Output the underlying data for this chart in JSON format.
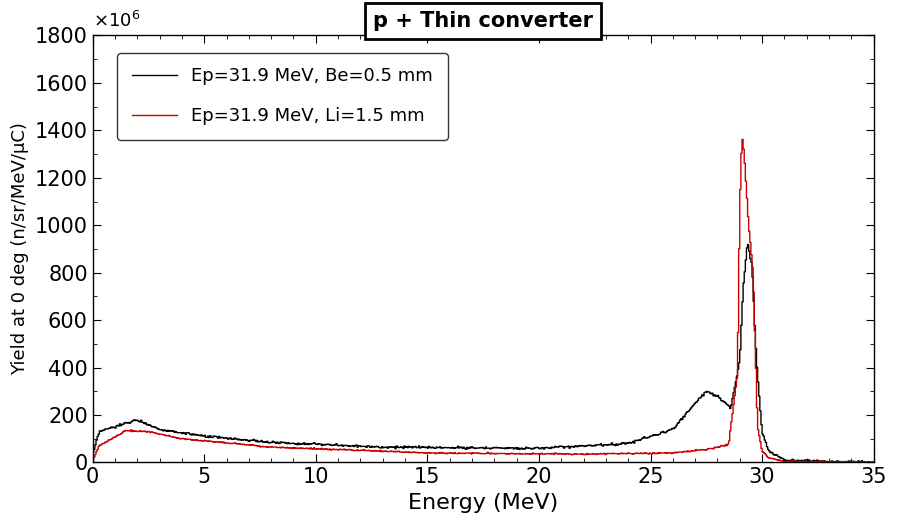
{
  "title": "p + Thin converter",
  "xlabel": "Energy (MeV)",
  "ylabel": "Yield at 0 deg (n/sr/MeV/μC)",
  "xlim": [
    0,
    35
  ],
  "ylim": [
    0,
    1800
  ],
  "legend1": "Ep=31.9 MeV, Be=0.5 mm",
  "legend2": "Ep=31.9 MeV, Li=1.5 mm",
  "color_black": "#000000",
  "color_red": "#cc0000",
  "background": "#ffffff",
  "scale_label": "×10⁶",
  "title_fontsize": 15,
  "axis_fontsize": 16,
  "tick_fontsize": 15,
  "legend_fontsize": 13
}
